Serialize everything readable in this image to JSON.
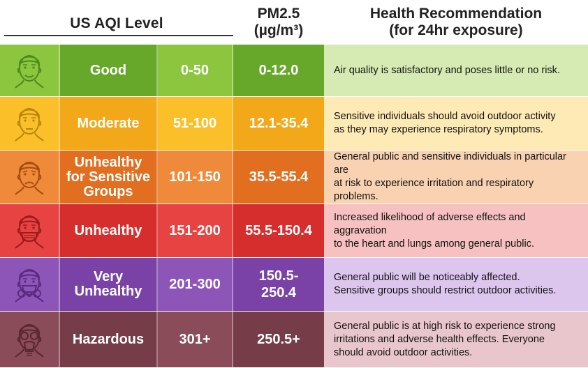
{
  "header": {
    "aqi_level": "US AQI Level",
    "pm25_line1": "PM2.5",
    "pm25_line2": "(µg/m³)",
    "health_line1": "Health Recommendation",
    "health_line2": "(for 24hr exposure)"
  },
  "rows": [
    {
      "level_lines": [
        "Good"
      ],
      "aqi_range": "0-50",
      "pm_lines": [
        "0-12.0"
      ],
      "health_lines": [
        "Air quality is satisfactory and poses little or no risk."
      ],
      "face_icon": "happy-face-icon",
      "colors": {
        "main": "#8cc63f",
        "dark": "#67a82b",
        "light": "#d5ebb3",
        "face": "#4d8a1c"
      }
    },
    {
      "level_lines": [
        "Moderate"
      ],
      "aqi_range": "51-100",
      "pm_lines": [
        "12.1-35.4"
      ],
      "health_lines": [
        "Sensitive individuals should avoid outdoor activity",
        "as they may experience respiratory symptoms."
      ],
      "face_icon": "neutral-face-icon",
      "colors": {
        "main": "#fbbf2a",
        "dark": "#f3a81a",
        "light": "#fdeab4",
        "face": "#b8860b"
      }
    },
    {
      "level_lines": [
        "Unhealthy",
        "for Sensitive",
        "Groups"
      ],
      "aqi_range": "101-150",
      "pm_lines": [
        "35.5-55.4"
      ],
      "health_lines": [
        "General public and sensitive individuals in particular are",
        "at risk to experience irritation and respiratory problems."
      ],
      "face_icon": "sad-face-icon",
      "colors": {
        "main": "#ef8a3a",
        "dark": "#e26e1f",
        "light": "#f9d3b1",
        "face": "#a74b10"
      }
    },
    {
      "level_lines": [
        "Unhealthy"
      ],
      "aqi_range": "151-200",
      "pm_lines": [
        "55.5-150.4"
      ],
      "health_lines": [
        "Increased likelihood of adverse effects and aggravation",
        "to the heart and lungs among general public."
      ],
      "face_icon": "face-mask-icon",
      "colors": {
        "main": "#e84343",
        "dark": "#d62d2d",
        "light": "#f7c1c1",
        "face": "#9e1b1b"
      }
    },
    {
      "level_lines": [
        "Very",
        "Unhealthy"
      ],
      "aqi_range": "201-300",
      "pm_lines": [
        "150.5-",
        "250.4"
      ],
      "health_lines": [
        "General public will be noticeably affected.",
        "Sensitive groups should restrict outdoor activities."
      ],
      "face_icon": "respirator-face-icon",
      "colors": {
        "main": "#8e55b8",
        "dark": "#7a42a6",
        "light": "#dcc6ee",
        "face": "#5a2a80"
      }
    },
    {
      "level_lines": [
        "Hazardous"
      ],
      "aqi_range": "301+",
      "pm_lines": [
        "250.5+"
      ],
      "health_lines": [
        "General public is at high risk to experience strong",
        "irritations and adverse health effects. Everyone",
        "should avoid outdoor activities."
      ],
      "face_icon": "gas-mask-icon",
      "colors": {
        "main": "#8a4c58",
        "dark": "#763c48",
        "light": "#e8c6cc",
        "face": "#5a2630"
      }
    }
  ]
}
